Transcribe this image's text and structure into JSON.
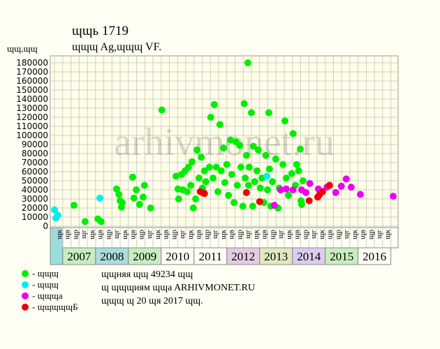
{
  "chart_data": {
    "type": "scatter",
    "title": "ɰɰь 1719",
    "subtitle": "ɰɰɰ Ag,ɰɰɰ VF.",
    "y_label": "ɰɰ,ɰɰ",
    "watermark": "arhivmonet.ru",
    "xlim": [
      2006.62,
      2017.22
    ],
    "ylim": [
      0,
      180000
    ],
    "yticks": [
      0,
      10000,
      20000,
      30000,
      40000,
      50000,
      60000,
      70000,
      80000,
      90000,
      100000,
      110000,
      120000,
      130000,
      140000,
      150000,
      160000,
      170000,
      180000
    ],
    "xticks": [
      2006.75,
      2007,
      2007.25,
      2007.5,
      2007.75,
      2008,
      2008.25,
      2008.5,
      2008.75,
      2009,
      2009.25,
      2009.5,
      2009.75,
      2010,
      2010.25,
      2010.5,
      2010.75,
      2011,
      2011.25,
      2011.5,
      2011.75,
      2012,
      2012.25,
      2012.5,
      2012.75,
      2013,
      2013.25,
      2013.5,
      2013.75,
      2014,
      2014.25,
      2014.5,
      2014.75,
      2015,
      2015.25,
      2015.5,
      2015.75,
      2016,
      2016.25,
      2016.5,
      2016.75,
      2017
    ],
    "quarter_labels": [
      "ɰк",
      "ɰв",
      "ɰр",
      "ɰг",
      "ɰк",
      "ɰв",
      "ɰр",
      "ɰг",
      "ɰк",
      "ɰв",
      "ɰр",
      "ɰг",
      "ɰк",
      "ɰв",
      "ɰр",
      "ɰг",
      "ɰк",
      "ɰв",
      "ɰр",
      "ɰг",
      "ɰк",
      "ɰв",
      "ɰр",
      "ɰг",
      "ɰк",
      "ɰв",
      "ɰр",
      "ɰг",
      "ɰк",
      "ɰв",
      "ɰр",
      "ɰг",
      "ɰк",
      "ɰв",
      "ɰр",
      "ɰг",
      "ɰк",
      "ɰв",
      "ɰр",
      "ɰг",
      "ɰк"
    ],
    "pre_band_color": "#99dddd",
    "year_bands": [
      {
        "year": 2007,
        "color": "#c8eec0"
      },
      {
        "year": 2008,
        "color": "#aadddd"
      },
      {
        "year": 2009,
        "color": "#c8eec0"
      },
      {
        "year": 2010,
        "color": "#fffff4"
      },
      {
        "year": 2011,
        "color": "#fffff4"
      },
      {
        "year": 2012,
        "color": "#e4cce4"
      },
      {
        "year": 2013,
        "color": "#e0e8c0"
      },
      {
        "year": 2014,
        "color": "#dcccee"
      },
      {
        "year": 2015,
        "color": "#c8eec0"
      },
      {
        "year": 2016,
        "color": "#fffff4"
      }
    ],
    "grid": true,
    "series": [
      {
        "name": "- ɰɰɰ",
        "color": "#00ee00",
        "x": [
          2007.34,
          2007.68,
          2008.07,
          2008.17,
          2008.64,
          2008.71,
          2008.75,
          2008.79,
          2008.81,
          2009.13,
          2009.17,
          2009.24,
          2009.34,
          2009.45,
          2009.49,
          2009.68,
          2010.02,
          2010.45,
          2010.51,
          2010.53,
          2010.62,
          2010.66,
          2010.73,
          2010.79,
          2010.83,
          2010.9,
          2010.94,
          2010.98,
          2011.05,
          2011.09,
          2011.15,
          2011.22,
          2011.26,
          2011.32,
          2011.36,
          2011.47,
          2011.51,
          2011.58,
          2011.62,
          2011.68,
          2011.73,
          2011.79,
          2011.83,
          2011.9,
          2011.94,
          2012.0,
          2012.05,
          2012.11,
          2012.15,
          2012.22,
          2012.28,
          2012.32,
          2012.39,
          2012.43,
          2012.49,
          2012.53,
          2012.56,
          2012.6,
          2012.64,
          2012.66,
          2012.68,
          2012.75,
          2012.79,
          2012.81,
          2012.85,
          2012.92,
          2012.96,
          2013.02,
          2013.07,
          2013.13,
          2013.19,
          2013.24,
          2013.28,
          2013.3,
          2013.34,
          2013.39,
          2013.49,
          2013.56,
          2013.6,
          2013.71,
          2013.77,
          2013.81,
          2013.88,
          2013.98,
          2014.02,
          2014.09,
          2014.13,
          2014.19,
          2014.24,
          2014.26,
          2014.28,
          2014.32
        ],
        "values": [
          23000,
          5000,
          8000,
          5000,
          41000,
          35000,
          28000,
          21000,
          26000,
          54000,
          31000,
          40000,
          24000,
          32000,
          45000,
          20000,
          128000,
          55000,
          41000,
          30000,
          57000,
          40000,
          61000,
          38000,
          65000,
          45000,
          71000,
          20000,
          30000,
          84000,
          53000,
          76000,
          42000,
          61000,
          49000,
          65000,
          120000,
          53000,
          134000,
          65000,
          38000,
          112000,
          61000,
          86000,
          48000,
          68000,
          34000,
          95000,
          57000,
          26000,
          93000,
          45000,
          89000,
          65000,
          22000,
          135000,
          53000,
          78000,
          180000,
          45000,
          65000,
          125000,
          22000,
          88000,
          49000,
          61000,
          84000,
          42000,
          53000,
          26000,
          78000,
          40000,
          125000,
          63000,
          22000,
          49000,
          74000,
          20000,
          42000,
          68000,
          116000,
          53000,
          34000,
          58000,
          102000,
          45000,
          68000,
          61000,
          85000,
          28000,
          24000,
          50000
        ]
      },
      {
        "name": "- ɰɰɰ",
        "color": "#00eeee",
        "x": [
          2006.75,
          2006.79,
          2006.85,
          2008.13,
          2013.22
        ],
        "values": [
          18000,
          9000,
          12000,
          31000,
          55000
        ]
      },
      {
        "name": "- ɰɰɰa",
        "color": "#ee00ee",
        "x": [
          2013.45,
          2013.64,
          2013.81,
          2014.02,
          2014.28,
          2014.41,
          2014.53,
          2014.79,
          2015.05,
          2015.32,
          2015.49,
          2015.64,
          2015.79,
          2016.07,
          2017.07
        ],
        "values": [
          23000,
          40000,
          41000,
          40000,
          40000,
          37000,
          47000,
          41000,
          43000,
          37000,
          44000,
          52000,
          43000,
          35000,
          33000
        ]
      },
      {
        "name": "- ɰɰɰɰɰБ",
        "color": "#ee0000",
        "x": [
          2011.19,
          2011.26,
          2011.32,
          2012.6,
          2013.0,
          2014.51,
          2014.77,
          2014.83,
          2014.92,
          2015.13
        ],
        "values": [
          38000,
          37000,
          36000,
          37000,
          27000,
          28000,
          32000,
          35000,
          38000,
          45000
        ]
      }
    ],
    "notes": [
      "ɰɰняя ɰɰ 49234 ɰɰ",
      "ɰ ɰɰɰиям ɰɰa ARHIVMONET.RU",
      "ɰɰɰ ɰ 20 ɰя 2017 ɰɰ."
    ]
  }
}
